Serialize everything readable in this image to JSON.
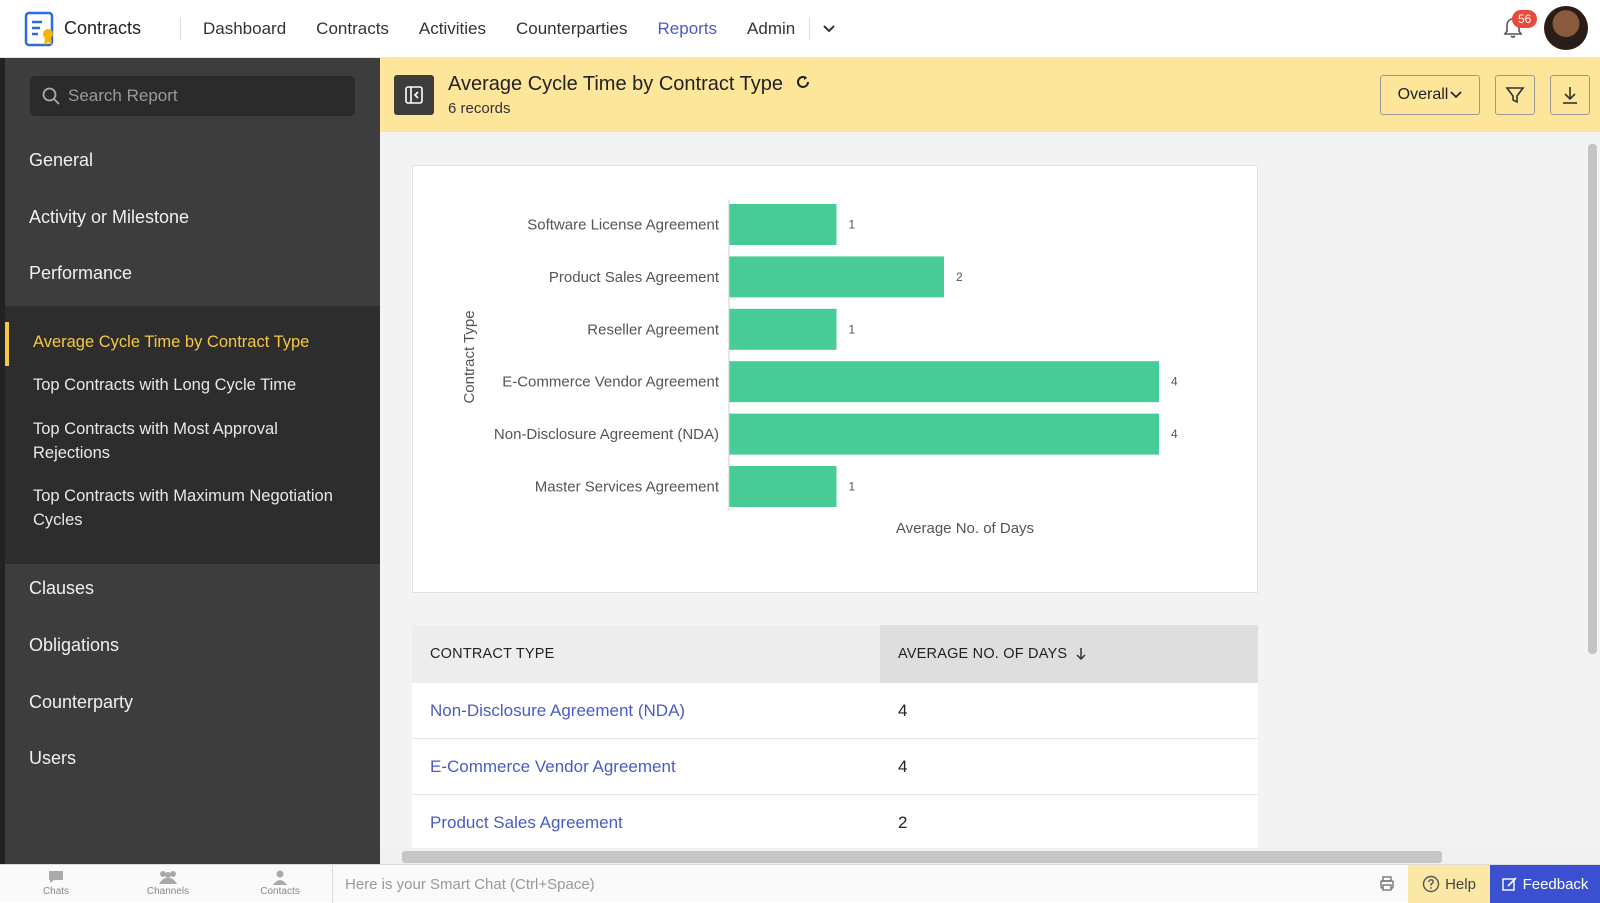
{
  "app": {
    "name": "Contracts",
    "nav": [
      "Dashboard",
      "Contracts",
      "Activities",
      "Counterparties",
      "Reports",
      "Admin"
    ],
    "active_nav": "Reports",
    "notification_count": "56"
  },
  "sidebar": {
    "search_placeholder": "Search Report",
    "sections_top": [
      "General",
      "Activity or Milestone",
      "Performance"
    ],
    "sub_items": [
      "Average Cycle Time by Contract Type",
      "Top Contracts with Long Cycle Time",
      "Top Contracts with Most Approval Rejections",
      "Top Contracts with Maximum Negotiation Cycles"
    ],
    "active_sub_item": "Average Cycle Time by Contract Type",
    "sections_bottom": [
      "Clauses",
      "Obligations",
      "Counterparty",
      "Users"
    ]
  },
  "report": {
    "title": "Average Cycle Time by Contract Type",
    "records": "6 records",
    "filter_select": "Overall"
  },
  "chart_data": {
    "type": "bar",
    "orientation": "horizontal",
    "categories": [
      "Software License Agreement",
      "Product Sales Agreement",
      "Reseller Agreement",
      "E-Commerce Vendor Agreement",
      "Non-Disclosure Agreement (NDA)",
      "Master Services Agreement"
    ],
    "values": [
      1,
      2,
      1,
      4,
      4,
      1
    ],
    "xlabel": "Average No. of Days",
    "ylabel": "Contract Type",
    "xlim": [
      0,
      4
    ],
    "bar_color": "#47cc98",
    "grid": false,
    "data_labels": true
  },
  "table": {
    "headers": [
      "CONTRACT TYPE",
      "AVERAGE NO. OF DAYS"
    ],
    "rows": [
      [
        "Non-Disclosure Agreement (NDA)",
        "4"
      ],
      [
        "E-Commerce Vendor Agreement",
        "4"
      ],
      [
        "Product Sales Agreement",
        "2"
      ]
    ]
  },
  "bottom_bar": {
    "items": [
      "Chats",
      "Channels",
      "Contacts"
    ],
    "smart_chat_placeholder": "Here is your Smart Chat (Ctrl+Space)",
    "help_label": "Help",
    "feedback_label": "Feedback"
  },
  "colors": {
    "accent": "#4a5bc8",
    "header_bg": "#fde59a",
    "sidebar_bg": "#3d3d3d",
    "sidebar_active": "#f5c842",
    "feedback_bg": "#3b4fd1"
  }
}
